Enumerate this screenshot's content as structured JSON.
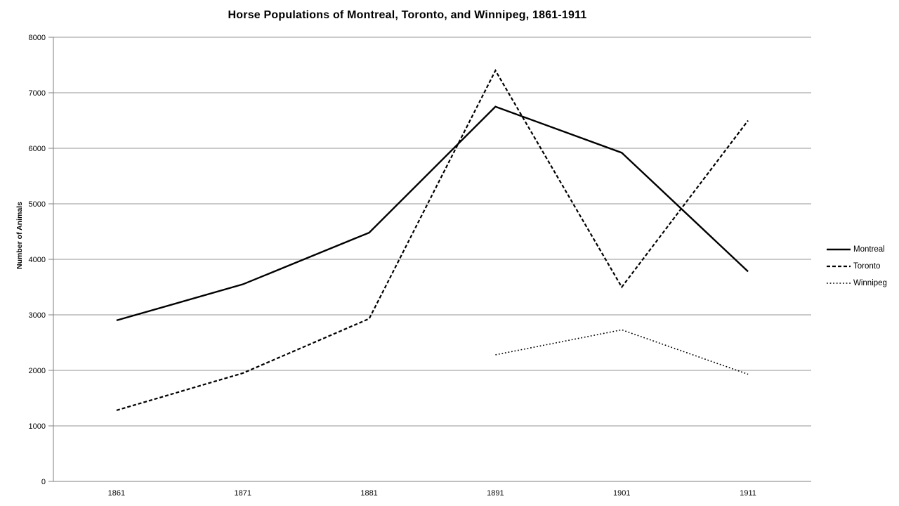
{
  "page": {
    "background": "#ffffff"
  },
  "chart_data": {
    "type": "line",
    "title": "Horse Populations of Montreal, Toronto, and Winnipeg, 1861-1911",
    "xlabel": "",
    "ylabel": "Number of Animals",
    "categories": [
      "1861",
      "1871",
      "1881",
      "1891",
      "1901",
      "1911"
    ],
    "series": [
      {
        "name": "Montreal",
        "style": "solid",
        "values": [
          2900,
          3550,
          4480,
          6750,
          5920,
          3780
        ]
      },
      {
        "name": "Toronto",
        "style": "dashed",
        "values": [
          1280,
          1950,
          2930,
          7400,
          3500,
          6500
        ]
      },
      {
        "name": "Winnipeg",
        "style": "dotted",
        "values": [
          null,
          null,
          null,
          2280,
          2730,
          1930
        ]
      }
    ],
    "ylim": [
      0,
      8000
    ],
    "ytick_step": 1000,
    "ytick_labels": [
      "0",
      "1000",
      "2000",
      "3000",
      "4000",
      "5000",
      "6000",
      "7000",
      "8000"
    ],
    "grid": "horizontal",
    "legend_position": "right",
    "colors": {
      "line": "#000000",
      "gridline": "#969696",
      "axis": "#7f7f7f",
      "text": "#000000",
      "background": "#ffffff"
    }
  }
}
